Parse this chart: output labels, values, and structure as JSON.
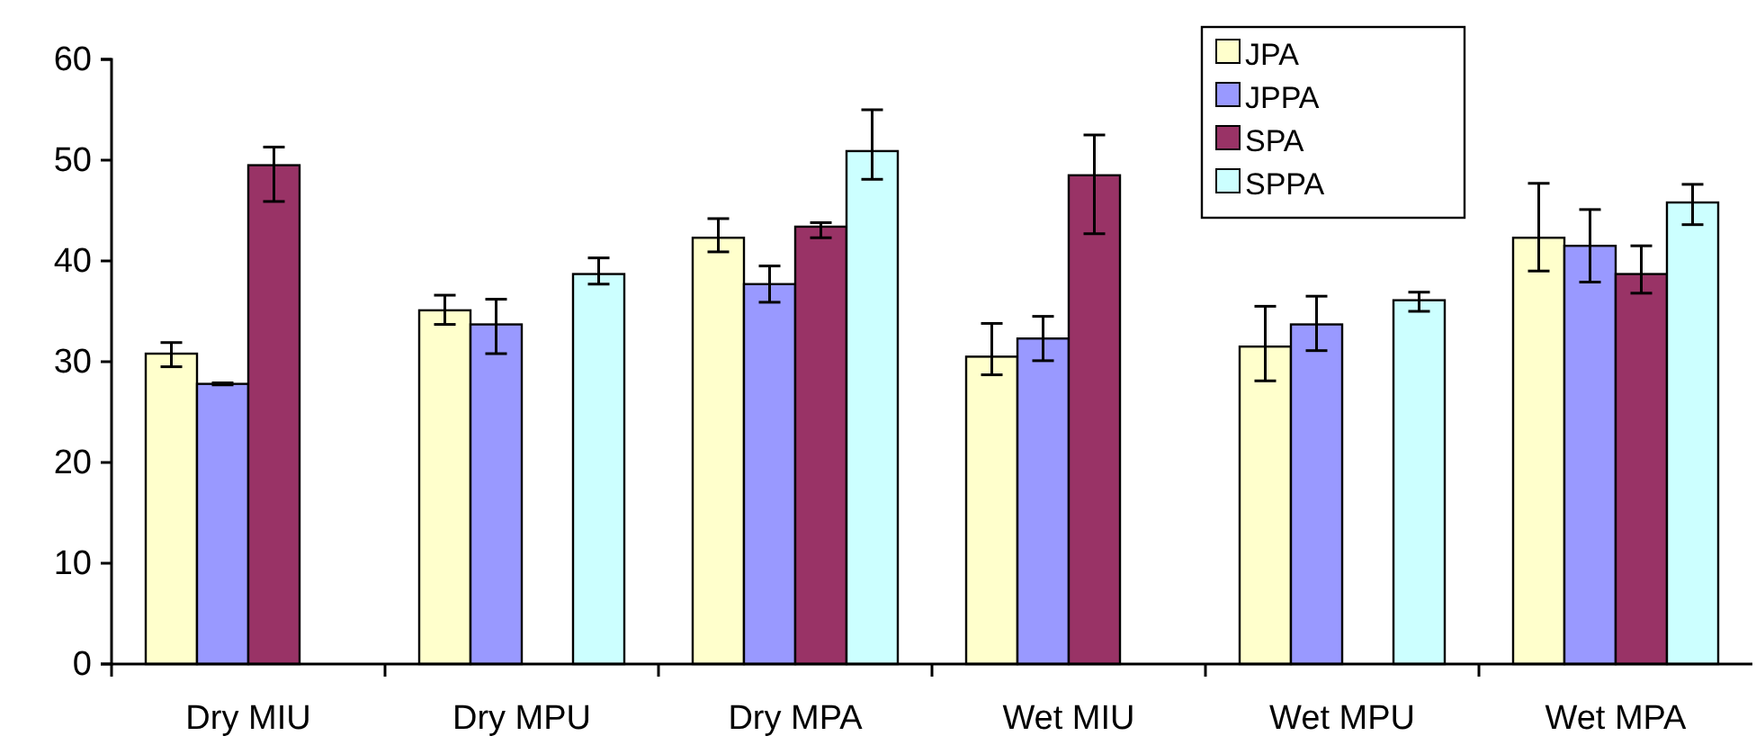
{
  "chart_data": {
    "type": "bar",
    "categories": [
      "Dry MIU",
      "Dry MPU",
      "Dry MPA",
      "Wet MIU",
      "Wet MPU",
      "Wet MPA"
    ],
    "series": [
      {
        "name": "JPA",
        "color": "#ffffcc",
        "values": [
          30.8,
          35.1,
          42.3,
          30.5,
          31.5,
          42.3
        ],
        "errors": [
          [
            29.5,
            31.9
          ],
          [
            33.7,
            36.6
          ],
          [
            40.9,
            44.2
          ],
          [
            28.7,
            33.8
          ],
          [
            28.1,
            35.5
          ],
          [
            39.0,
            47.7
          ]
        ]
      },
      {
        "name": "JPPA",
        "color": "#9999ff",
        "values": [
          27.8,
          33.7,
          37.7,
          32.3,
          33.7,
          41.5
        ],
        "errors": [
          [
            27.7,
            27.9
          ],
          [
            30.8,
            36.2
          ],
          [
            35.9,
            39.5
          ],
          [
            30.1,
            34.5
          ],
          [
            31.1,
            36.5
          ],
          [
            37.9,
            45.1
          ]
        ]
      },
      {
        "name": "SPA",
        "color": "#993366",
        "values": [
          49.5,
          null,
          43.4,
          48.5,
          null,
          38.7
        ],
        "errors": [
          [
            45.9,
            51.3
          ],
          null,
          [
            42.3,
            43.8
          ],
          [
            42.7,
            52.5
          ],
          null,
          [
            36.8,
            41.5
          ]
        ]
      },
      {
        "name": "SPPA",
        "color": "#ccffff",
        "values": [
          null,
          38.7,
          50.9,
          null,
          36.1,
          45.8
        ],
        "errors": [
          null,
          [
            37.7,
            40.3
          ],
          [
            48.1,
            55.0
          ],
          null,
          [
            35.0,
            36.9
          ],
          [
            43.6,
            47.6
          ]
        ]
      }
    ],
    "ylim": [
      0,
      60
    ],
    "yticks": [
      0,
      10,
      20,
      30,
      40,
      50,
      60
    ],
    "grid": false,
    "legend": "top right"
  }
}
